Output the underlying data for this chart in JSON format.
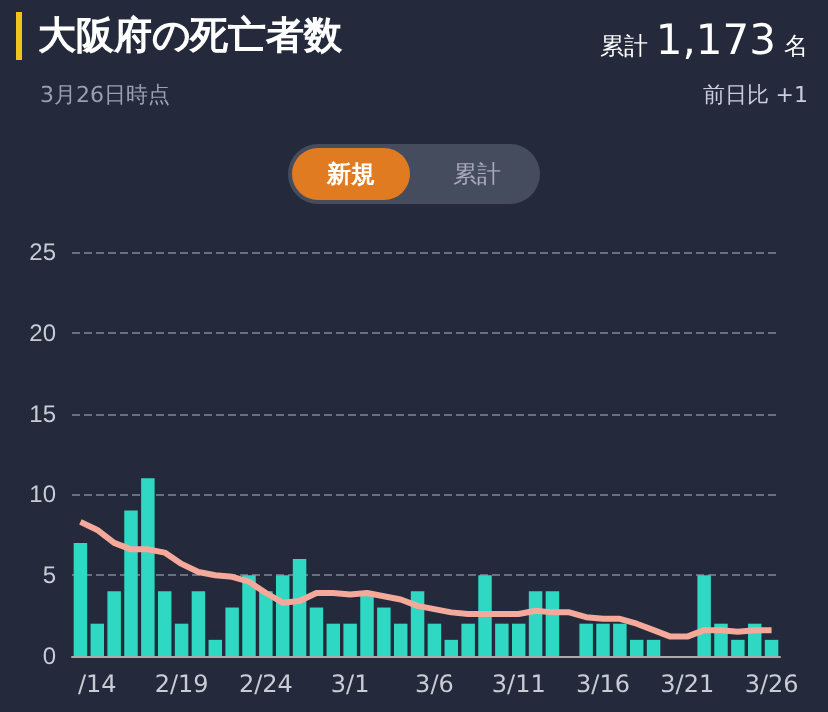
{
  "chart_data": {
    "type": "bar",
    "title": "大阪府の死亡者数",
    "subtitle": "3月26日時点",
    "annotations": [
      "累計",
      "1,173",
      "名",
      "前日比 +1",
      "新規",
      "累計"
    ],
    "categories": [
      null,
      "/14",
      null,
      null,
      null,
      null,
      "2/19",
      null,
      null,
      null,
      null,
      "2/24",
      null,
      null,
      null,
      null,
      "3/1",
      null,
      null,
      null,
      null,
      "3/6",
      null,
      null,
      null,
      null,
      "3/11",
      null,
      null,
      null,
      null,
      "3/16",
      null,
      null,
      null,
      null,
      "3/21",
      null,
      null,
      null,
      null,
      "3/26"
    ],
    "series": [
      {
        "color": "#2ed8c3",
        "values": [
          7,
          2,
          4,
          9,
          11,
          4,
          2,
          4,
          1,
          3,
          5,
          4,
          5,
          6,
          3,
          2,
          2,
          4,
          3,
          2,
          4,
          2,
          1,
          2,
          5,
          2,
          2,
          4,
          4,
          0,
          2,
          2,
          2,
          1,
          1,
          0,
          0,
          5,
          2,
          1,
          2,
          1
        ]
      },
      {
        "type": "line",
        "color": "#f4a99a",
        "values": [
          8.3,
          7.8,
          7,
          6.6,
          6.6,
          6.4,
          5.7,
          5.2,
          5,
          4.9,
          4.6,
          3.9,
          3.3,
          3.4,
          3.9,
          3.9,
          3.8,
          3.9,
          3.7,
          3.5,
          3.1,
          2.9,
          2.7,
          2.6,
          2.6,
          2.6,
          2.6,
          2.8,
          2.7,
          2.7,
          2.4,
          2.3,
          2.3,
          2,
          1.6,
          1.2,
          1.2,
          1.6,
          1.6,
          1.5,
          1.6,
          1.6
        ]
      }
    ],
    "ylim": [
      0,
      25
    ],
    "yticks": [
      0,
      5,
      10,
      15,
      20,
      25
    ],
    "grid": "y",
    "marker": "none"
  }
}
